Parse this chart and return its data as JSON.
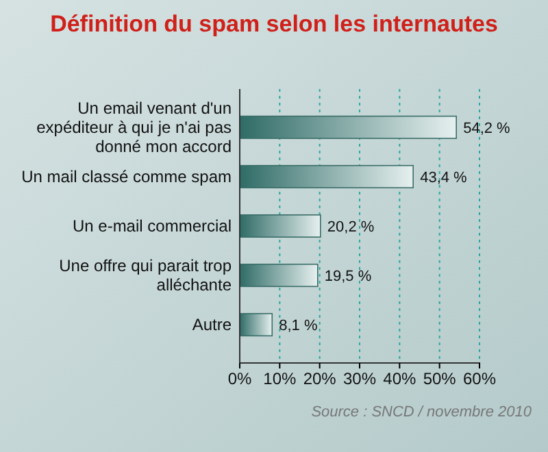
{
  "chart_data": {
    "type": "bar",
    "orientation": "horizontal",
    "title": "Définition du spam selon les internautes",
    "categories": [
      "Un email venant d'un expéditeur à qui je n'ai pas donné mon accord",
      "Un mail classé comme spam",
      "Un e-mail commercial",
      "Une offre qui parait trop alléchante",
      "Autre"
    ],
    "values": [
      54.2,
      43.4,
      20.2,
      19.5,
      8.1
    ],
    "value_labels": [
      "54,2 %",
      "43,4 %",
      "20,2 %",
      "19,5 %",
      "8,1 %"
    ],
    "color": "#2f6b66",
    "xlim": [
      0,
      60
    ],
    "xticks": [
      {
        "value": 0,
        "label": "0%"
      },
      {
        "value": 10,
        "label": "10%"
      },
      {
        "value": 20,
        "label": "20%"
      },
      {
        "value": 30,
        "label": "30%"
      },
      {
        "value": 40,
        "label": "40%"
      },
      {
        "value": 50,
        "label": "50%"
      },
      {
        "value": 60,
        "label": "60%"
      }
    ],
    "grid": "x",
    "annotations": [
      "Source : SNCD / novembre 2010"
    ]
  }
}
